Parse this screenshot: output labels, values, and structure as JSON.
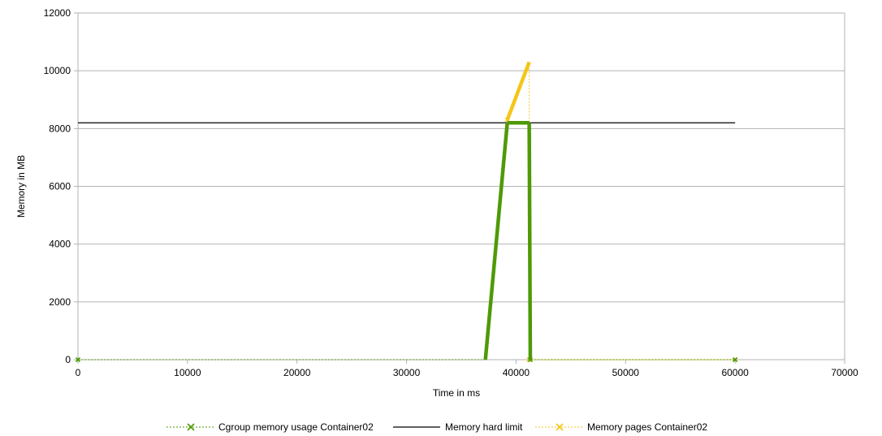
{
  "chart_data": {
    "type": "line",
    "title": "",
    "xlabel": "Time in ms",
    "ylabel": "Memory in MB",
    "xlim": [
      0,
      70000
    ],
    "ylim": [
      0,
      12000
    ],
    "x_ticks": [
      0,
      10000,
      20000,
      30000,
      40000,
      50000,
      60000,
      70000
    ],
    "y_ticks": [
      0,
      2000,
      4000,
      6000,
      8000,
      10000,
      12000
    ],
    "grid": "horizontal",
    "legend_position": "bottom",
    "series": [
      {
        "name": "Cgroup memory usage Container02",
        "color": "#4e9a06",
        "style": "dotted with x markers",
        "x": [
          0,
          37200,
          39200,
          41200,
          41300,
          41400,
          60000
        ],
        "y": [
          0,
          0,
          8200,
          8200,
          0,
          0,
          0
        ]
      },
      {
        "name": "Memory hard limit",
        "color": "#000000",
        "style": "solid",
        "x": [
          0,
          60000
        ],
        "y": [
          8200,
          8200
        ]
      },
      {
        "name": "Memory pages Container02",
        "color": "#f5c518",
        "style": "dotted with x markers",
        "x": [
          39200,
          41200,
          41200,
          41300,
          60000
        ],
        "y": [
          8300,
          10300,
          0,
          0,
          0
        ]
      }
    ]
  }
}
